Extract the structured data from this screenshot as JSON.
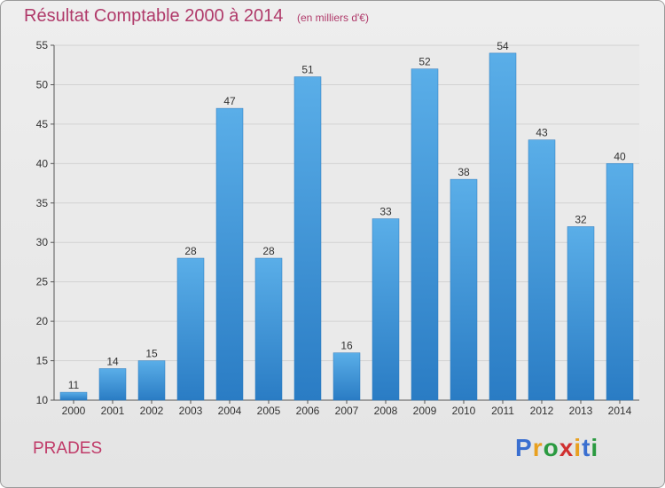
{
  "header": {
    "title": "Résultat Comptable 2000 à 2014",
    "subtitle": "(en milliers d'€)"
  },
  "footer": {
    "city": "PRADES",
    "logo_text": "Proxiti",
    "logo_colors": [
      "#3a6fd0",
      "#e8a020",
      "#2a9a40",
      "#d03030",
      "#e8a020",
      "#3a6fd0",
      "#2a9a40"
    ]
  },
  "chart_data": {
    "type": "bar",
    "title": "Résultat Comptable 2000 à 2014",
    "subtitle": "(en milliers d'€)",
    "xlabel": "",
    "ylabel": "",
    "categories": [
      "2000",
      "2001",
      "2002",
      "2003",
      "2004",
      "2005",
      "2006",
      "2007",
      "2008",
      "2009",
      "2010",
      "2011",
      "2012",
      "2013",
      "2014"
    ],
    "values": [
      11,
      14,
      15,
      28,
      47,
      28,
      51,
      16,
      33,
      52,
      38,
      54,
      43,
      32,
      40
    ],
    "ylim": [
      10,
      55
    ],
    "yticks": [
      10,
      15,
      20,
      25,
      30,
      35,
      40,
      45,
      50,
      55
    ],
    "grid": true,
    "bar_color": "#3a8fd6",
    "bar_color_light": "#5aaee8",
    "bar_color_dark": "#2a7cc4"
  }
}
